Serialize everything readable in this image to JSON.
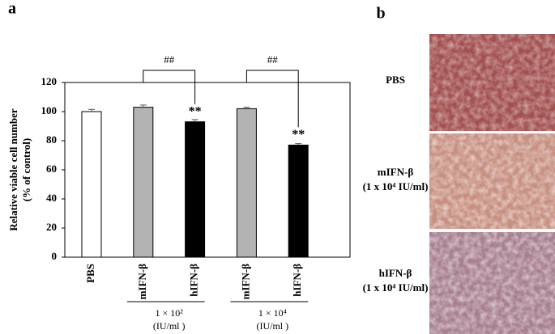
{
  "chart_data": {
    "type": "bar",
    "panel_label": "a",
    "ylabel": [
      "Relative viable cell number",
      "(% of control)"
    ],
    "categories": [
      "PBS",
      "mIFN-β",
      "hIFN-β",
      "mIFN-β",
      "hIFN-β"
    ],
    "values": [
      100,
      103,
      93,
      102,
      77
    ],
    "errors": [
      1.5,
      1.5,
      1.5,
      1,
      1
    ],
    "colors": [
      "#ffffff",
      "#b3b3b3",
      "#000000",
      "#b3b3b3",
      "#000000"
    ],
    "ylim": [
      0,
      120
    ],
    "yticks": [
      0,
      20,
      40,
      60,
      80,
      100,
      120
    ],
    "groups": [
      {
        "label": "1 × 10²",
        "unit": "(IU/ml )"
      },
      {
        "label": "1 × 10⁴",
        "unit": "(IU/ml )"
      }
    ],
    "annotations": [
      "##",
      "##",
      "**",
      "**"
    ]
  },
  "images": {
    "panel_label": "b",
    "rows": [
      {
        "label": "PBS",
        "sub": ""
      },
      {
        "label": "mIFN-β",
        "sub": "(1 x 10⁴ IU/ml)"
      },
      {
        "label": "hIFN-β",
        "sub": "(1 x 10⁴ IU/ml)"
      }
    ]
  }
}
